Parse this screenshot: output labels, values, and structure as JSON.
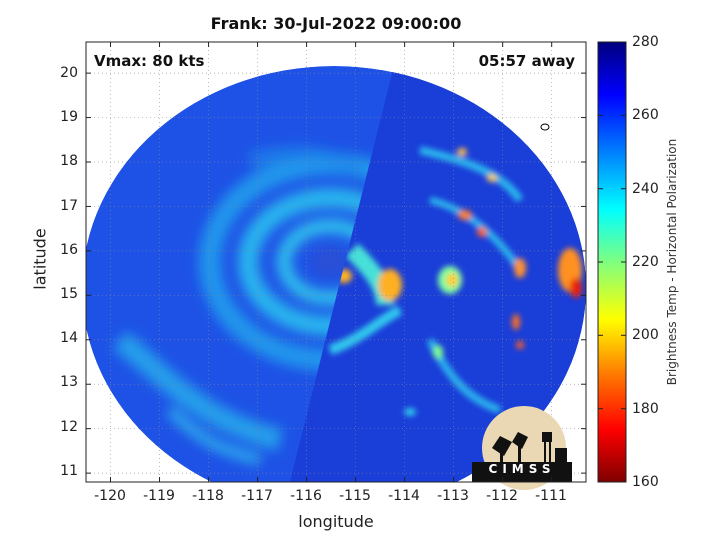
{
  "title": "Frank: 30-Jul-2022 09:00:00",
  "vmax_text": "Vmax: 80 kts",
  "away_text": "05:57 away",
  "logo_text": "CIMSS",
  "axes": {
    "xlabel": "longitude",
    "ylabel": "latitude",
    "xticks": [
      "-120",
      "-119",
      "-118",
      "-117",
      "-116",
      "-115",
      "-114",
      "-113",
      "-112",
      "-111"
    ],
    "yticks": [
      "20",
      "19",
      "18",
      "17",
      "16",
      "15",
      "14",
      "13",
      "12",
      "11"
    ]
  },
  "colorbar": {
    "label": "Brightness Temp - Horizontal Polarization",
    "ticks": [
      "280",
      "260",
      "240",
      "220",
      "200",
      "180",
      "160"
    ],
    "colormap": "jet",
    "colors": [
      "#00007f",
      "#0000ff",
      "#007fff",
      "#00ffff",
      "#7fff7f",
      "#ffff00",
      "#ff7f00",
      "#ff0000",
      "#7f0000"
    ]
  },
  "map": {
    "storm_center_lon": -115.2,
    "storm_center_lat": 15.9,
    "lon_range": [
      -120.5,
      -110.3
    ],
    "lat_range": [
      10.8,
      20.7
    ],
    "grid": "on",
    "background_color": "#1e52e6",
    "eye_color": "#2a50d6",
    "band_color": "#28b8ec",
    "warm_band_color": "#ffb020",
    "hot_color": "#e82010"
  }
}
